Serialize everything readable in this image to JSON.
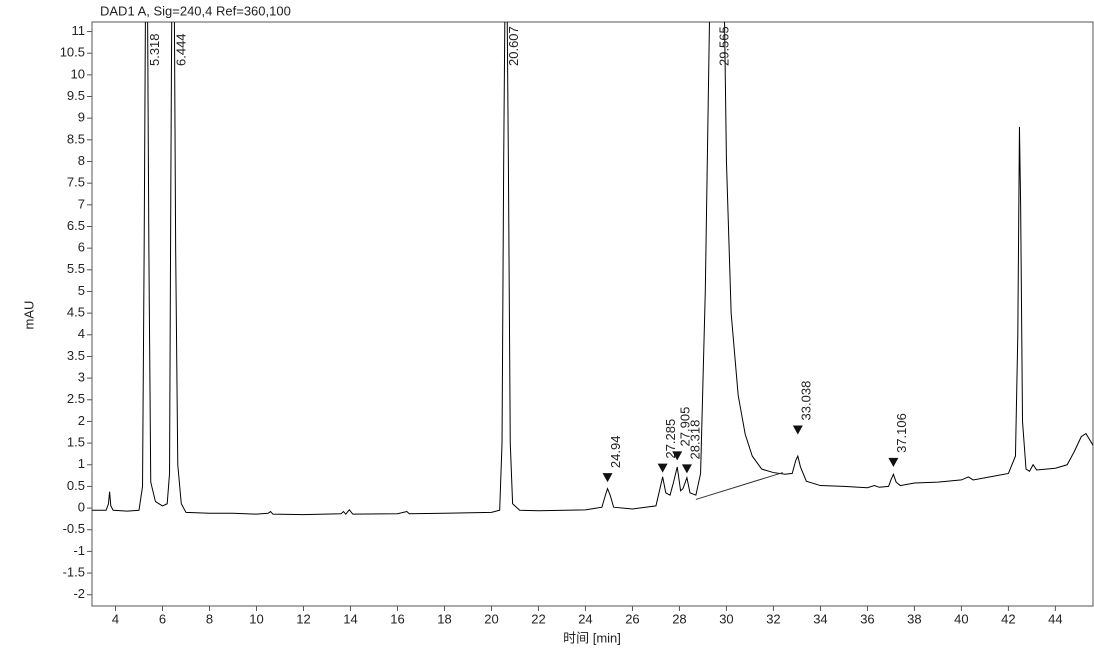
{
  "chart_data": {
    "type": "line",
    "title": "DAD1 A,  Sig=240,4 Ref=360,100",
    "x_label": "时间 [min]",
    "y_label": "mAU",
    "xlim": [
      3.0,
      45.6
    ],
    "ylim": [
      -2.26,
      11.22
    ],
    "xticks": [
      4,
      6,
      8,
      10,
      12,
      14,
      16,
      18,
      20,
      22,
      24,
      26,
      28,
      30,
      32,
      34,
      36,
      38,
      40,
      42,
      44
    ],
    "yticks": [
      -2,
      -1.5,
      -1,
      -0.5,
      0,
      0.5,
      1,
      1.5,
      2,
      2.5,
      3,
      3.5,
      4,
      4.5,
      5,
      5.5,
      6,
      6.5,
      7,
      7.5,
      8,
      8.5,
      9,
      9.5,
      10,
      10.5,
      11
    ],
    "x": [
      3.0,
      3.6,
      3.7,
      3.75,
      3.8,
      3.9,
      4.5,
      5.0,
      5.15,
      5.22,
      5.28,
      5.36,
      5.42,
      5.5,
      5.7,
      6.0,
      6.2,
      6.3,
      6.36,
      6.4,
      6.5,
      6.56,
      6.65,
      6.8,
      7.0,
      8.0,
      9.0,
      10.0,
      10.5,
      10.6,
      10.7,
      12.0,
      13.6,
      13.7,
      13.8,
      13.95,
      14.1,
      16.0,
      16.4,
      16.5,
      18.0,
      20.0,
      20.35,
      20.45,
      20.52,
      20.58,
      20.66,
      20.72,
      20.8,
      20.9,
      21.2,
      22.0,
      24.0,
      24.7,
      24.85,
      24.94,
      25.05,
      25.2,
      26.0,
      27.0,
      27.15,
      27.285,
      27.42,
      27.6,
      27.75,
      27.905,
      28.05,
      28.15,
      28.318,
      28.45,
      28.7,
      28.9,
      29.1,
      29.3,
      29.9,
      30.0,
      30.2,
      30.5,
      30.8,
      31.1,
      31.5,
      32.0,
      32.5,
      32.8,
      32.95,
      33.038,
      33.15,
      33.4,
      34.0,
      35.0,
      36.0,
      36.3,
      36.5,
      36.9,
      37.0,
      37.106,
      37.22,
      37.4,
      38.0,
      39.0,
      40.0,
      40.3,
      40.5,
      41.5,
      42.0,
      42.3,
      42.4,
      42.47,
      42.52,
      42.6,
      42.75,
      42.9,
      43.05,
      43.2,
      44.0,
      44.5,
      44.8,
      45.1,
      45.3,
      45.6
    ],
    "series": [
      {
        "color": "#000000",
        "values": [
          -0.05,
          -0.05,
          0.1,
          0.38,
          0.05,
          -0.05,
          -0.07,
          -0.05,
          0.5,
          6,
          12,
          12,
          6,
          0.6,
          0.15,
          0.05,
          0.1,
          0.8,
          8,
          12,
          12,
          6,
          1,
          0.1,
          -0.1,
          -0.12,
          -0.12,
          -0.14,
          -0.12,
          -0.08,
          -0.14,
          -0.15,
          -0.13,
          -0.08,
          -0.14,
          -0.04,
          -0.14,
          -0.13,
          -0.08,
          -0.13,
          -0.12,
          -0.1,
          -0.05,
          1.5,
          8,
          12,
          12,
          8,
          1.5,
          0.1,
          -0.05,
          -0.06,
          -0.04,
          0.02,
          0.3,
          0.45,
          0.3,
          0.02,
          -0.02,
          0.05,
          0.4,
          0.72,
          0.35,
          0.3,
          0.6,
          0.95,
          0.4,
          0.45,
          0.7,
          0.35,
          0.3,
          0.8,
          5,
          12,
          12,
          8,
          4.5,
          2.6,
          1.7,
          1.2,
          0.9,
          0.82,
          0.78,
          0.8,
          1.1,
          1.2,
          0.95,
          0.62,
          0.52,
          0.5,
          0.47,
          0.52,
          0.48,
          0.5,
          0.65,
          0.78,
          0.6,
          0.52,
          0.58,
          0.6,
          0.65,
          0.72,
          0.65,
          0.75,
          0.8,
          1.2,
          4,
          8.8,
          7,
          2,
          0.9,
          0.85,
          1.0,
          0.88,
          0.92,
          1.0,
          1.3,
          1.65,
          1.72,
          1.45
        ]
      }
    ],
    "baseline": {
      "x": [
        28.7,
        32.4
      ],
      "values": [
        0.2,
        0.82
      ]
    },
    "peaks": [
      {
        "x": 5.318
      },
      {
        "x": 6.444
      },
      {
        "x": 20.607
      },
      {
        "x": 24.94,
        "marker_y": 0.6
      },
      {
        "x": 27.285,
        "marker_y": 0.82
      },
      {
        "x": 27.905,
        "marker_y": 1.1
      },
      {
        "x": 28.318,
        "marker_y": 0.8
      },
      {
        "x": 29.565
      },
      {
        "x": 33.038,
        "marker_y": 1.7
      },
      {
        "x": 37.106,
        "marker_y": 0.95
      }
    ]
  }
}
